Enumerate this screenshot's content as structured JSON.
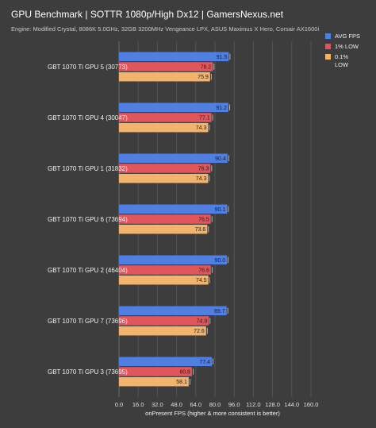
{
  "chart_data": {
    "type": "bar",
    "orientation": "horizontal",
    "title": "GPU Benchmark | SOTTR 1080p/High Dx12 | GamersNexus.net",
    "subtitle": "Engine: Modified Crystal, 8086K 5.0GHz, 32GB 3200MHz Vengeance LPX, ASUS Maximus X Hero, Corsair AX1600i",
    "xlabel": "onPresent FPS (higher & more consistent is better)",
    "xlim": [
      0,
      160
    ],
    "xticks": [
      "0.0",
      "16.0",
      "32.0",
      "48.0",
      "64.0",
      "80.0",
      "96.0",
      "112.0",
      "128.0",
      "144.0",
      "160.0"
    ],
    "grid": true,
    "legend_position": "top-right",
    "categories": [
      "GBT 1070 Ti GPU 5 (30773)",
      "GBT 1070 Ti GPU 4 (30047)",
      "GBT 1070 Ti GPU 1 (31832)",
      "GBT 1070 Ti GPU 6 (73694)",
      "GBT 1070 Ti GPU 2 (46404)",
      "GBT 1070 Ti GPU 7 (73696)",
      "GBT 1070 Ti GPU 3 (73695)"
    ],
    "series": [
      {
        "name": "AVG FPS",
        "color": "#4f7fe0",
        "values": [
          91.5,
          91.2,
          90.4,
          90.1,
          90.0,
          89.7,
          77.4
        ]
      },
      {
        "name": "1% LOW",
        "color": "#e0565b",
        "values": [
          78.2,
          77.1,
          76.3,
          76.5,
          76.6,
          74.9,
          60.8
        ]
      },
      {
        "name": "0.1% LOW",
        "color": "#f4b36b",
        "values": [
          75.9,
          74.3,
          74.3,
          73.6,
          74.5,
          72.6,
          58.1
        ]
      }
    ]
  }
}
